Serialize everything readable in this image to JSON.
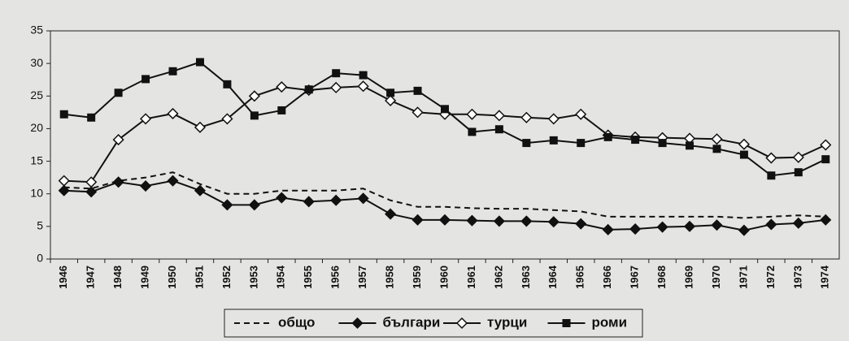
{
  "chart_data": {
    "type": "line",
    "categories": [
      "1946",
      "1947",
      "1948",
      "1949",
      "1950",
      "1951",
      "1952",
      "1953",
      "1954",
      "1955",
      "1956",
      "1957",
      "1958",
      "1959",
      "1960",
      "1961",
      "1962",
      "1963",
      "1964",
      "1965",
      "1966",
      "1967",
      "1968",
      "1969",
      "1970",
      "1971",
      "1972",
      "1973",
      "1974"
    ],
    "series": [
      {
        "name": "общо",
        "color": "#111111",
        "dash": true,
        "marker": "none",
        "values": [
          11,
          10.8,
          12,
          12.5,
          13.3,
          11.5,
          10,
          10,
          10.5,
          10.5,
          10.5,
          10.8,
          9,
          8,
          8,
          7.8,
          7.7,
          7.7,
          7.5,
          7.3,
          6.5,
          6.5,
          6.5,
          6.5,
          6.5,
          6.3,
          6.5,
          6.7,
          6.5
        ]
      },
      {
        "name": "българи",
        "color": "#111111",
        "dash": false,
        "marker": "diamond",
        "values": [
          10.5,
          10.3,
          11.8,
          11.2,
          12,
          10.5,
          8.3,
          8.3,
          9.4,
          8.8,
          9,
          9.3,
          6.9,
          6,
          6,
          5.9,
          5.8,
          5.8,
          5.7,
          5.4,
          4.5,
          4.6,
          4.9,
          5,
          5.2,
          4.4,
          5.3,
          5.5,
          6
        ]
      },
      {
        "name": "турци",
        "color": "#111111",
        "dash": false,
        "marker": "hollow-diamond",
        "values": [
          12,
          11.8,
          18.3,
          21.5,
          22.3,
          20.2,
          21.5,
          25,
          26.4,
          25.9,
          26.3,
          26.5,
          24.3,
          22.5,
          22.2,
          22.2,
          22,
          21.7,
          21.5,
          22.2,
          19,
          18.7,
          18.6,
          18.5,
          18.4,
          17.6,
          15.5,
          15.6,
          17.5
        ]
      },
      {
        "name": "роми",
        "color": "#111111",
        "dash": false,
        "marker": "square",
        "values": [
          22.2,
          21.7,
          25.5,
          27.6,
          28.8,
          30.2,
          26.8,
          22,
          22.8,
          26,
          28.5,
          28.2,
          25.5,
          25.8,
          23,
          19.5,
          19.9,
          17.8,
          18.2,
          17.8,
          18.7,
          18.3,
          17.8,
          17.4,
          16.9,
          16,
          12.8,
          13.3,
          15.3
        ]
      }
    ],
    "ylim": [
      0,
      35
    ],
    "yticks": [
      0,
      5,
      10,
      15,
      20,
      25,
      30,
      35
    ],
    "grid": false,
    "legend": "bottom"
  }
}
